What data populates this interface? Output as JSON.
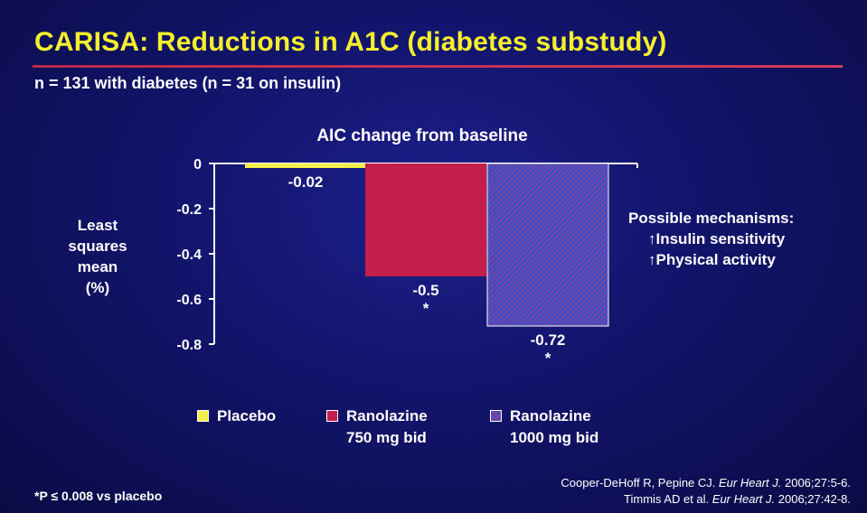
{
  "slide": {
    "title": "CARISA: Reductions in A1C (diabetes substudy)",
    "subtitle": "n = 131 with diabetes (n = 31 on insulin)",
    "mechanisms": {
      "heading": "Possible mechanisms:",
      "items": [
        "↑Insulin sensitivity",
        "↑Physical activity"
      ]
    },
    "footnote": "*P ≤ 0.008 vs placebo",
    "references": [
      {
        "pre": "Cooper-DeHoff R, Pepine CJ. ",
        "journal": "Eur Heart J.",
        "post": " 2006;27:5-6."
      },
      {
        "pre": "Timmis AD et al. ",
        "journal": "Eur Heart J.",
        "post": " 2006;27:42-8."
      }
    ]
  },
  "chart_data": {
    "type": "bar",
    "title": "AIC change from baseline",
    "ylabel": "Least squares mean (%)",
    "ylabel_lines": [
      "Least",
      "squares",
      "mean",
      "(%)"
    ],
    "ylim": [
      -0.8,
      0
    ],
    "yticks": [
      0,
      -0.2,
      -0.4,
      -0.6,
      -0.8
    ],
    "ytick_labels": [
      "0",
      "-0.2",
      "-0.4",
      "-0.6",
      "-0.8"
    ],
    "grid": false,
    "legend_position": "bottom",
    "series": [
      {
        "name": "Placebo",
        "legend_lines": [
          "Placebo"
        ],
        "value": -0.02,
        "label": "-0.02",
        "significance": "",
        "color": "#f4f04a",
        "pattern": "solid"
      },
      {
        "name": "Ranolazine 750 mg bid",
        "legend_lines": [
          "Ranolazine",
          "750 mg bid"
        ],
        "value": -0.5,
        "label": "-0.5",
        "significance": "*",
        "color": "#c41e4a",
        "pattern": "solid"
      },
      {
        "name": "Ranolazine 1000 mg bid",
        "legend_lines": [
          "Ranolazine",
          "1000 mg bid"
        ],
        "value": -0.72,
        "label": "-0.72",
        "significance": "*",
        "color": "#3a4fc8",
        "pattern": "hatched"
      }
    ]
  }
}
